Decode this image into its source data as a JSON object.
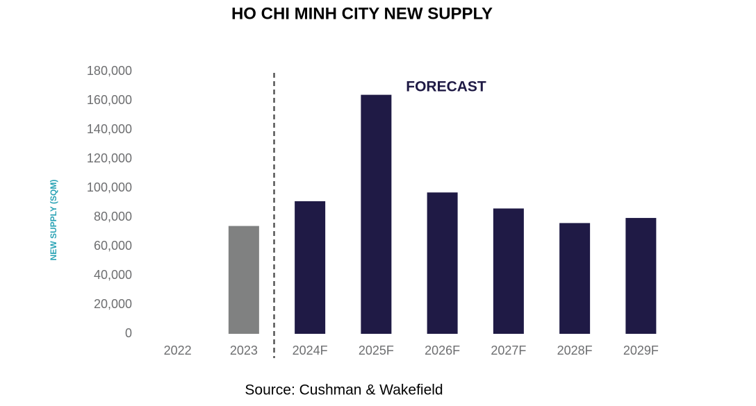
{
  "chart_data": {
    "type": "bar",
    "title": "HO CHI MINH CITY NEW SUPPLY",
    "y_label": "NEW SUPPLY (SQM)",
    "annotation": "FORECAST",
    "source": "Source: Cushman & Wakefield",
    "categories": [
      "2022",
      "2023",
      "2024F",
      "2025F",
      "2026F",
      "2027F",
      "2028F",
      "2029F"
    ],
    "values": [
      null,
      74000,
      91000,
      164000,
      97000,
      86000,
      76000,
      79500
    ],
    "colors": [
      "#1f1a45",
      "#808181",
      "#1f1a45",
      "#1f1a45",
      "#1f1a45",
      "#1f1a45",
      "#1f1a45",
      "#1f1a45"
    ],
    "ylim": [
      0,
      180000
    ],
    "yticks": [
      0,
      {
        "value": 20000,
        "label": "20,000"
      },
      {
        "value": 40000,
        "label": "40,000"
      },
      {
        "value": 60000,
        "label": "60,000"
      },
      {
        "value": 80000,
        "label": "80,000"
      },
      {
        "value": 100000,
        "label": "100,000"
      },
      {
        "value": 120000,
        "label": "120,000"
      },
      {
        "value": 140000,
        "label": "140,000"
      },
      {
        "value": 160000,
        "label": "160,000"
      },
      {
        "value": 180000,
        "label": "180,000"
      }
    ],
    "grid": false
  }
}
